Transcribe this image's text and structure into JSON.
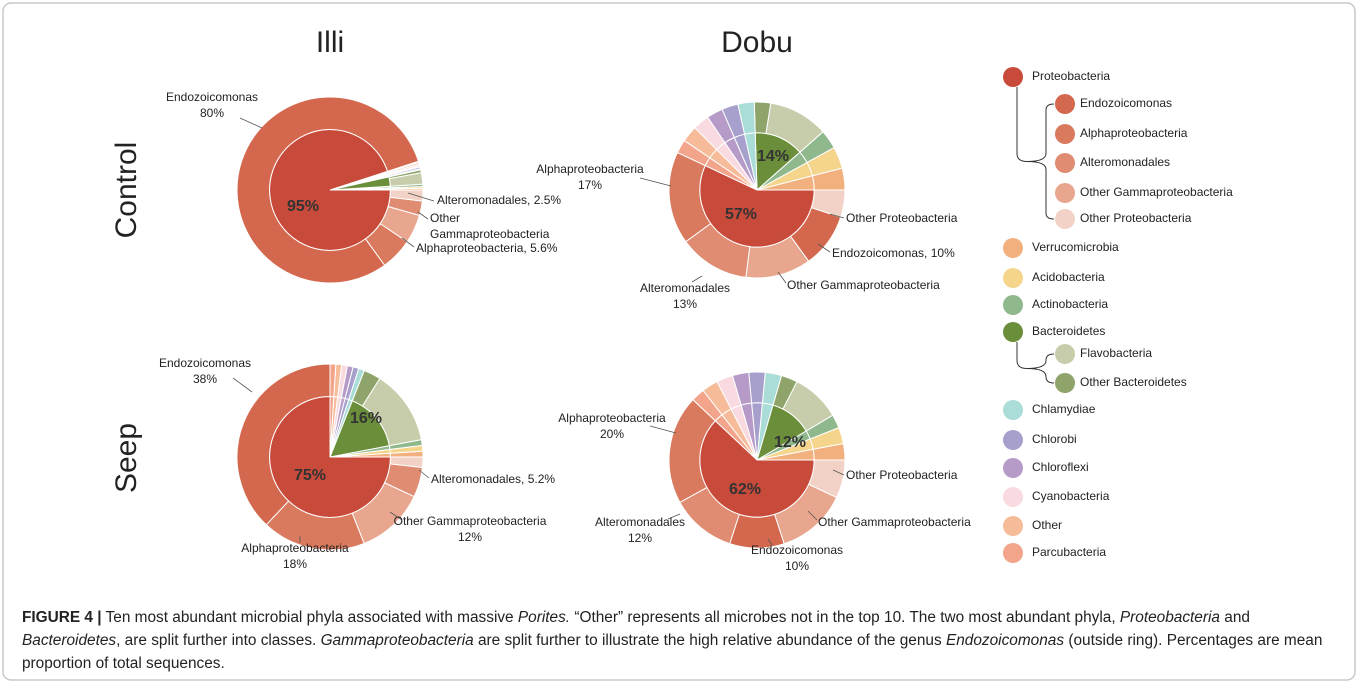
{
  "columns": [
    "Illi",
    "Dobu"
  ],
  "rows": [
    "Control",
    "Seep"
  ],
  "legend": [
    {
      "name": "Proteobacteria",
      "color": "#c84a3a",
      "children": [
        {
          "name": "Endozoicomonas",
          "color": "#d3684f"
        },
        {
          "name": "Alphaproteobacteria",
          "color": "#d97a5f"
        },
        {
          "name": "Alteromonadales",
          "color": "#e08c72"
        },
        {
          "name": "Other Gammaproteobacteria",
          "color": "#e9a68f"
        },
        {
          "name": "Other Proteobacteria",
          "color": "#f2d2c6"
        }
      ]
    },
    {
      "name": "Verrucomicrobia",
      "color": "#f3b07f"
    },
    {
      "name": "Acidobacteria",
      "color": "#f5d48c"
    },
    {
      "name": "Actinobacteria",
      "color": "#8fb88d"
    },
    {
      "name": "Bacteroidetes",
      "color": "#6b8e3a",
      "children": [
        {
          "name": "Flavobacteria",
          "color": "#c7cdab"
        },
        {
          "name": "Other Bacteroidetes",
          "color": "#8ea46a"
        }
      ]
    },
    {
      "name": "Chlamydiae",
      "color": "#aadcd8"
    },
    {
      "name": "Chlorobi",
      "color": "#a79fcc"
    },
    {
      "name": "Chloroflexi",
      "color": "#b69bc9"
    },
    {
      "name": "Cyanobacteria",
      "color": "#f9dae0"
    },
    {
      "name": "Other",
      "color": "#f6bc99"
    },
    {
      "name": "Parcubacteria",
      "color": "#f2a58b"
    }
  ],
  "chart_data": [
    {
      "type": "sunburst",
      "inner": [
        {
          "name": "Verrucomicrobia",
          "value": 0.3
        },
        {
          "name": "Acidobacteria",
          "value": 0.3
        },
        {
          "name": "Actinobacteria",
          "value": 0.4
        },
        {
          "name": "Bacteroidetes",
          "value": 2.5
        },
        {
          "name": "Chlamydiae",
          "value": 0.2
        },
        {
          "name": "Chlorobi",
          "value": 0.3
        },
        {
          "name": "Chloroflexi",
          "value": 0.2
        },
        {
          "name": "Cyanobacteria",
          "value": 0.3
        },
        {
          "name": "Other",
          "value": 0.3
        },
        {
          "name": "Parcubacteria",
          "value": 0.2
        },
        {
          "name": "Proteobacteria",
          "value": 95,
          "label": "95%"
        }
      ],
      "outer": [
        {
          "name": "Verrucomicrobia",
          "value": 0.3
        },
        {
          "name": "Acidobacteria",
          "value": 0.3
        },
        {
          "name": "Actinobacteria",
          "value": 0.4
        },
        {
          "name": "Flavobacteria",
          "value": 2
        },
        {
          "name": "Other Bacteroidetes",
          "value": 0.5
        },
        {
          "name": "Chlamydiae",
          "value": 0.2
        },
        {
          "name": "Chlorobi",
          "value": 0.3
        },
        {
          "name": "Chloroflexi",
          "value": 0.2
        },
        {
          "name": "Cyanobacteria",
          "value": 0.3
        },
        {
          "name": "Other",
          "value": 0.3
        },
        {
          "name": "Parcubacteria",
          "value": 0.2
        },
        {
          "name": "Endozoicomonas",
          "value": 80,
          "label": [
            "Endozoicomonas",
            "80%"
          ]
        },
        {
          "name": "Alphaproteobacteria",
          "value": 5.6,
          "label": [
            "Alphaproteobacteria, 5.6%"
          ]
        },
        {
          "name": "Other Gammaproteobacteria",
          "value": 5,
          "label": [
            "Other",
            "Gammaproteobacteria"
          ]
        },
        {
          "name": "Alteromonadales",
          "value": 2.5,
          "label": [
            "Alteromonadales, 2.5%"
          ]
        },
        {
          "name": "Other Proteobacteria",
          "value": 1.9
        }
      ]
    },
    {
      "type": "sunburst",
      "inner": [
        {
          "name": "Verrucomicrobia",
          "value": 4
        },
        {
          "name": "Acidobacteria",
          "value": 4
        },
        {
          "name": "Actinobacteria",
          "value": 3.5
        },
        {
          "name": "Bacteroidetes",
          "value": 14,
          "label": "14%"
        },
        {
          "name": "Chlamydiae",
          "value": 3
        },
        {
          "name": "Chlorobi",
          "value": 3
        },
        {
          "name": "Chloroflexi",
          "value": 3
        },
        {
          "name": "Cyanobacteria",
          "value": 3
        },
        {
          "name": "Other",
          "value": 3
        },
        {
          "name": "Parcubacteria",
          "value": 2.5
        },
        {
          "name": "Proteobacteria",
          "value": 57,
          "label": "57%"
        }
      ],
      "outer": [
        {
          "name": "Verrucomicrobia",
          "value": 4
        },
        {
          "name": "Acidobacteria",
          "value": 4
        },
        {
          "name": "Actinobacteria",
          "value": 3.5
        },
        {
          "name": "Flavobacteria",
          "value": 11
        },
        {
          "name": "Other Bacteroidetes",
          "value": 3
        },
        {
          "name": "Chlamydiae",
          "value": 3
        },
        {
          "name": "Chlorobi",
          "value": 3
        },
        {
          "name": "Chloroflexi",
          "value": 3
        },
        {
          "name": "Cyanobacteria",
          "value": 3
        },
        {
          "name": "Other",
          "value": 3
        },
        {
          "name": "Parcubacteria",
          "value": 2.5
        },
        {
          "name": "Alphaproteobacteria",
          "value": 17,
          "label": [
            "Alphaproteobacteria",
            "17%"
          ]
        },
        {
          "name": "Alteromonadales",
          "value": 13,
          "label": [
            "Alteromonadales",
            "13%"
          ]
        },
        {
          "name": "Other Gammaproteobacteria",
          "value": 12,
          "label": [
            "Other Gammaproteobacteria"
          ]
        },
        {
          "name": "Endozoicomonas",
          "value": 10,
          "label": [
            "Endozoicomonas, 10%"
          ]
        },
        {
          "name": "Other Proteobacteria",
          "value": 5,
          "label": [
            "Other Proteobacteria"
          ]
        }
      ]
    },
    {
      "type": "sunburst",
      "inner": [
        {
          "name": "Verrucomicrobia",
          "value": 1
        },
        {
          "name": "Acidobacteria",
          "value": 1
        },
        {
          "name": "Actinobacteria",
          "value": 1
        },
        {
          "name": "Bacteroidetes",
          "value": 16,
          "label": "16%"
        },
        {
          "name": "Chlamydiae",
          "value": 1
        },
        {
          "name": "Chlorobi",
          "value": 1
        },
        {
          "name": "Chloroflexi",
          "value": 1
        },
        {
          "name": "Cyanobacteria",
          "value": 1
        },
        {
          "name": "Other",
          "value": 1
        },
        {
          "name": "Parcubacteria",
          "value": 1
        },
        {
          "name": "Proteobacteria",
          "value": 75,
          "label": "75%"
        }
      ],
      "outer": [
        {
          "name": "Verrucomicrobia",
          "value": 1
        },
        {
          "name": "Acidobacteria",
          "value": 1
        },
        {
          "name": "Actinobacteria",
          "value": 1
        },
        {
          "name": "Flavobacteria",
          "value": 13
        },
        {
          "name": "Other Bacteroidetes",
          "value": 3
        },
        {
          "name": "Chlamydiae",
          "value": 1
        },
        {
          "name": "Chlorobi",
          "value": 1
        },
        {
          "name": "Chloroflexi",
          "value": 1
        },
        {
          "name": "Cyanobacteria",
          "value": 1
        },
        {
          "name": "Other",
          "value": 1
        },
        {
          "name": "Parcubacteria",
          "value": 1
        },
        {
          "name": "Endozoicomonas",
          "value": 38,
          "label": [
            "Endozoicomonas",
            "38%"
          ]
        },
        {
          "name": "Alphaproteobacteria",
          "value": 18,
          "label": [
            "Alphaproteobacteria",
            "18%"
          ]
        },
        {
          "name": "Other Gammaproteobacteria",
          "value": 12,
          "label": [
            "Other Gammaproteobacteria",
            "12%"
          ]
        },
        {
          "name": "Alteromonadales",
          "value": 5.2,
          "label": [
            "Alteromonadales, 5.2%"
          ]
        },
        {
          "name": "Other Proteobacteria",
          "value": 1.8
        }
      ]
    },
    {
      "type": "sunburst",
      "inner": [
        {
          "name": "Verrucomicrobia",
          "value": 3
        },
        {
          "name": "Acidobacteria",
          "value": 3
        },
        {
          "name": "Actinobacteria",
          "value": 2.5
        },
        {
          "name": "Bacteroidetes",
          "value": 12,
          "label": "12%"
        },
        {
          "name": "Chlamydiae",
          "value": 3
        },
        {
          "name": "Chlorobi",
          "value": 3
        },
        {
          "name": "Chloroflexi",
          "value": 3
        },
        {
          "name": "Cyanobacteria",
          "value": 3
        },
        {
          "name": "Other",
          "value": 3
        },
        {
          "name": "Parcubacteria",
          "value": 2.5
        },
        {
          "name": "Proteobacteria",
          "value": 62,
          "label": "62%"
        }
      ],
      "outer": [
        {
          "name": "Verrucomicrobia",
          "value": 3
        },
        {
          "name": "Acidobacteria",
          "value": 3
        },
        {
          "name": "Actinobacteria",
          "value": 2.5
        },
        {
          "name": "Flavobacteria",
          "value": 9
        },
        {
          "name": "Other Bacteroidetes",
          "value": 3
        },
        {
          "name": "Chlamydiae",
          "value": 3
        },
        {
          "name": "Chlorobi",
          "value": 3
        },
        {
          "name": "Chloroflexi",
          "value": 3
        },
        {
          "name": "Cyanobacteria",
          "value": 3
        },
        {
          "name": "Other",
          "value": 3
        },
        {
          "name": "Parcubacteria",
          "value": 2.5
        },
        {
          "name": "Alphaproteobacteria",
          "value": 20,
          "label": [
            "Alphaproteobacteria",
            "20%"
          ]
        },
        {
          "name": "Alteromonadales",
          "value": 12,
          "label": [
            "Alteromonadales",
            "12%"
          ]
        },
        {
          "name": "Endozoicomonas",
          "value": 10,
          "label": [
            "Endozoicomonas",
            "10%"
          ]
        },
        {
          "name": "Other Gammaproteobacteria",
          "value": 13,
          "label": [
            "Other Gammaproteobacteria"
          ]
        },
        {
          "name": "Other Proteobacteria",
          "value": 7,
          "label": [
            "Other Proteobacteria"
          ]
        }
      ]
    }
  ],
  "caption": [
    {
      "text": "FIGURE 4 |",
      "style": "bold"
    },
    {
      "text": " Ten most abundant microbial phyla associated with massive "
    },
    {
      "text": "Porites.",
      "style": "italic"
    },
    {
      "text": " “Other” represents all microbes not in the top 10. The two most abundant phyla, "
    },
    {
      "text": "Proteobacteria",
      "style": "italic"
    },
    {
      "text": " and "
    },
    {
      "text": "Bacteroidetes",
      "style": "italic"
    },
    {
      "text": ", are split further into classes. "
    },
    {
      "text": "Gammaproteobacteria",
      "style": "italic"
    },
    {
      "text": " are split further to illustrate the high relative abundance of the genus "
    },
    {
      "text": "Endozoicomonas",
      "style": "italic"
    },
    {
      "text": " (outside ring). Percentages are mean proportion of total sequences."
    }
  ]
}
